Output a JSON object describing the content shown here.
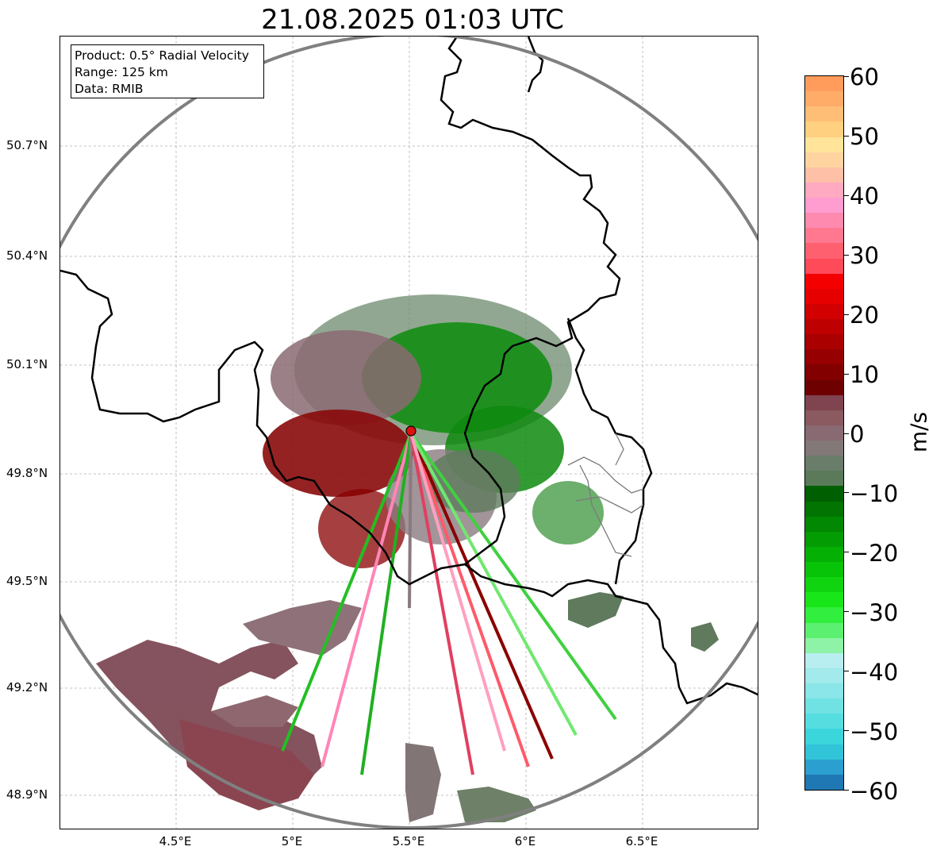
{
  "title": "21.08.2025 01:03 UTC",
  "info_box": {
    "product": "Product: 0.5° Radial Velocity",
    "range": "Range: 125 km",
    "data": "Data: RMIB"
  },
  "map": {
    "lat_ticks": [
      "50.7°N",
      "50.4°N",
      "50.1°N",
      "49.8°N",
      "49.5°N",
      "49.2°N",
      "48.9°N"
    ],
    "lon_ticks": [
      "4.5°E",
      "5°E",
      "5.5°E",
      "6°E",
      "6.5°E"
    ],
    "radar_site_color": "#e01010",
    "range_ring_color": "#808080"
  },
  "colorbar": {
    "unit": "m/s",
    "ticks": [
      "60",
      "50",
      "40",
      "30",
      "20",
      "10",
      "0",
      "−10",
      "−20",
      "−30",
      "−40",
      "−50",
      "−60"
    ],
    "min": -60,
    "max": 60,
    "colors": [
      "#1f78b4",
      "#2a9fd0",
      "#31c4d8",
      "#3ad6dc",
      "#55dde0",
      "#70e2e4",
      "#8ae6e8",
      "#a2eaec",
      "#b8eef0",
      "#8ef3a6",
      "#5cf070",
      "#32ee3e",
      "#18e618",
      "#0fd40f",
      "#08c408",
      "#05b005",
      "#039c03",
      "#028802",
      "#017401",
      "#005f00",
      "#5a7a5a",
      "#6a7c6a",
      "#827878",
      "#8a6a72",
      "#8a5a60",
      "#804450",
      "#6e0000",
      "#820000",
      "#960000",
      "#aa0000",
      "#be0000",
      "#d20000",
      "#e60000",
      "#f50000",
      "#ff4a5a",
      "#ff6070",
      "#ff7890",
      "#ff8ab0",
      "#ff9cd0",
      "#ffaac0",
      "#ffc0a8",
      "#ffd4a0",
      "#ffe49a",
      "#ffd080",
      "#ffbe76",
      "#ffac68",
      "#ff9c5c"
    ]
  }
}
